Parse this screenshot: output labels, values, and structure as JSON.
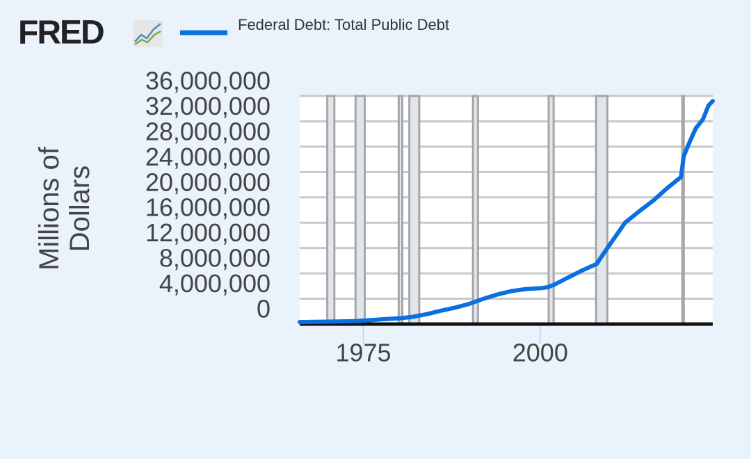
{
  "logo_text": "FRED",
  "chart_data": {
    "type": "line",
    "y_label": "Millions of Dollars",
    "x": [
      1966,
      1968,
      1970,
      1972,
      1974,
      1976,
      1978,
      1980,
      1982,
      1984,
      1986,
      1988,
      1990,
      1992,
      1994,
      1996,
      1998,
      2000,
      2001,
      2002,
      2004,
      2006,
      2008,
      2008.7,
      2009.5,
      2010.5,
      2012,
      2014,
      2016,
      2018,
      2019.9,
      2020.3,
      2021,
      2022,
      2023,
      2023.8,
      2024.4
    ],
    "series": [
      {
        "name": "Federal Debt: Total Public Debt",
        "color": "#0a6fe0",
        "values": [
          320000,
          350000,
          380000,
          430000,
          480000,
          620000,
          780000,
          900000,
          1140000,
          1570000,
          2120000,
          2600000,
          3200000,
          4000000,
          4690000,
          5220000,
          5530000,
          5660000,
          5800000,
          6230000,
          7380000,
          8500000,
          9500000,
          10700000,
          12000000,
          13600000,
          16000000,
          17800000,
          19500000,
          21500000,
          23200000,
          26500000,
          28400000,
          30900000,
          32300000,
          34500000,
          35200000
        ]
      }
    ],
    "xlim": [
      1966,
      2024.4
    ],
    "xticks": [
      1975,
      2000
    ],
    "ylim": [
      0,
      36000000
    ],
    "yticks": [
      0,
      {
        "value": 4000000,
        "label": "4,000,000"
      },
      {
        "value": 8000000,
        "label": "8,000,000"
      },
      {
        "value": 12000000,
        "label": "12,000,000"
      },
      {
        "value": 16000000,
        "label": "16,000,000"
      },
      {
        "value": 20000000,
        "label": "20,000,000"
      },
      {
        "value": 24000000,
        "label": "24,000,000"
      },
      {
        "value": 28000000,
        "label": "28,000,000"
      },
      {
        "value": 32000000,
        "label": "32,000,000"
      },
      {
        "value": 36000000,
        "label": "36,000,000"
      }
    ],
    "recessions": [
      [
        1969.9,
        1970.9
      ],
      [
        1973.9,
        1975.2
      ],
      [
        1980.0,
        1980.5
      ],
      [
        1981.5,
        1982.9
      ],
      [
        1990.5,
        1991.2
      ],
      [
        2001.2,
        2001.9
      ],
      [
        2007.9,
        2009.5
      ],
      [
        2020.1,
        2020.3
      ]
    ],
    "grid": true
  }
}
